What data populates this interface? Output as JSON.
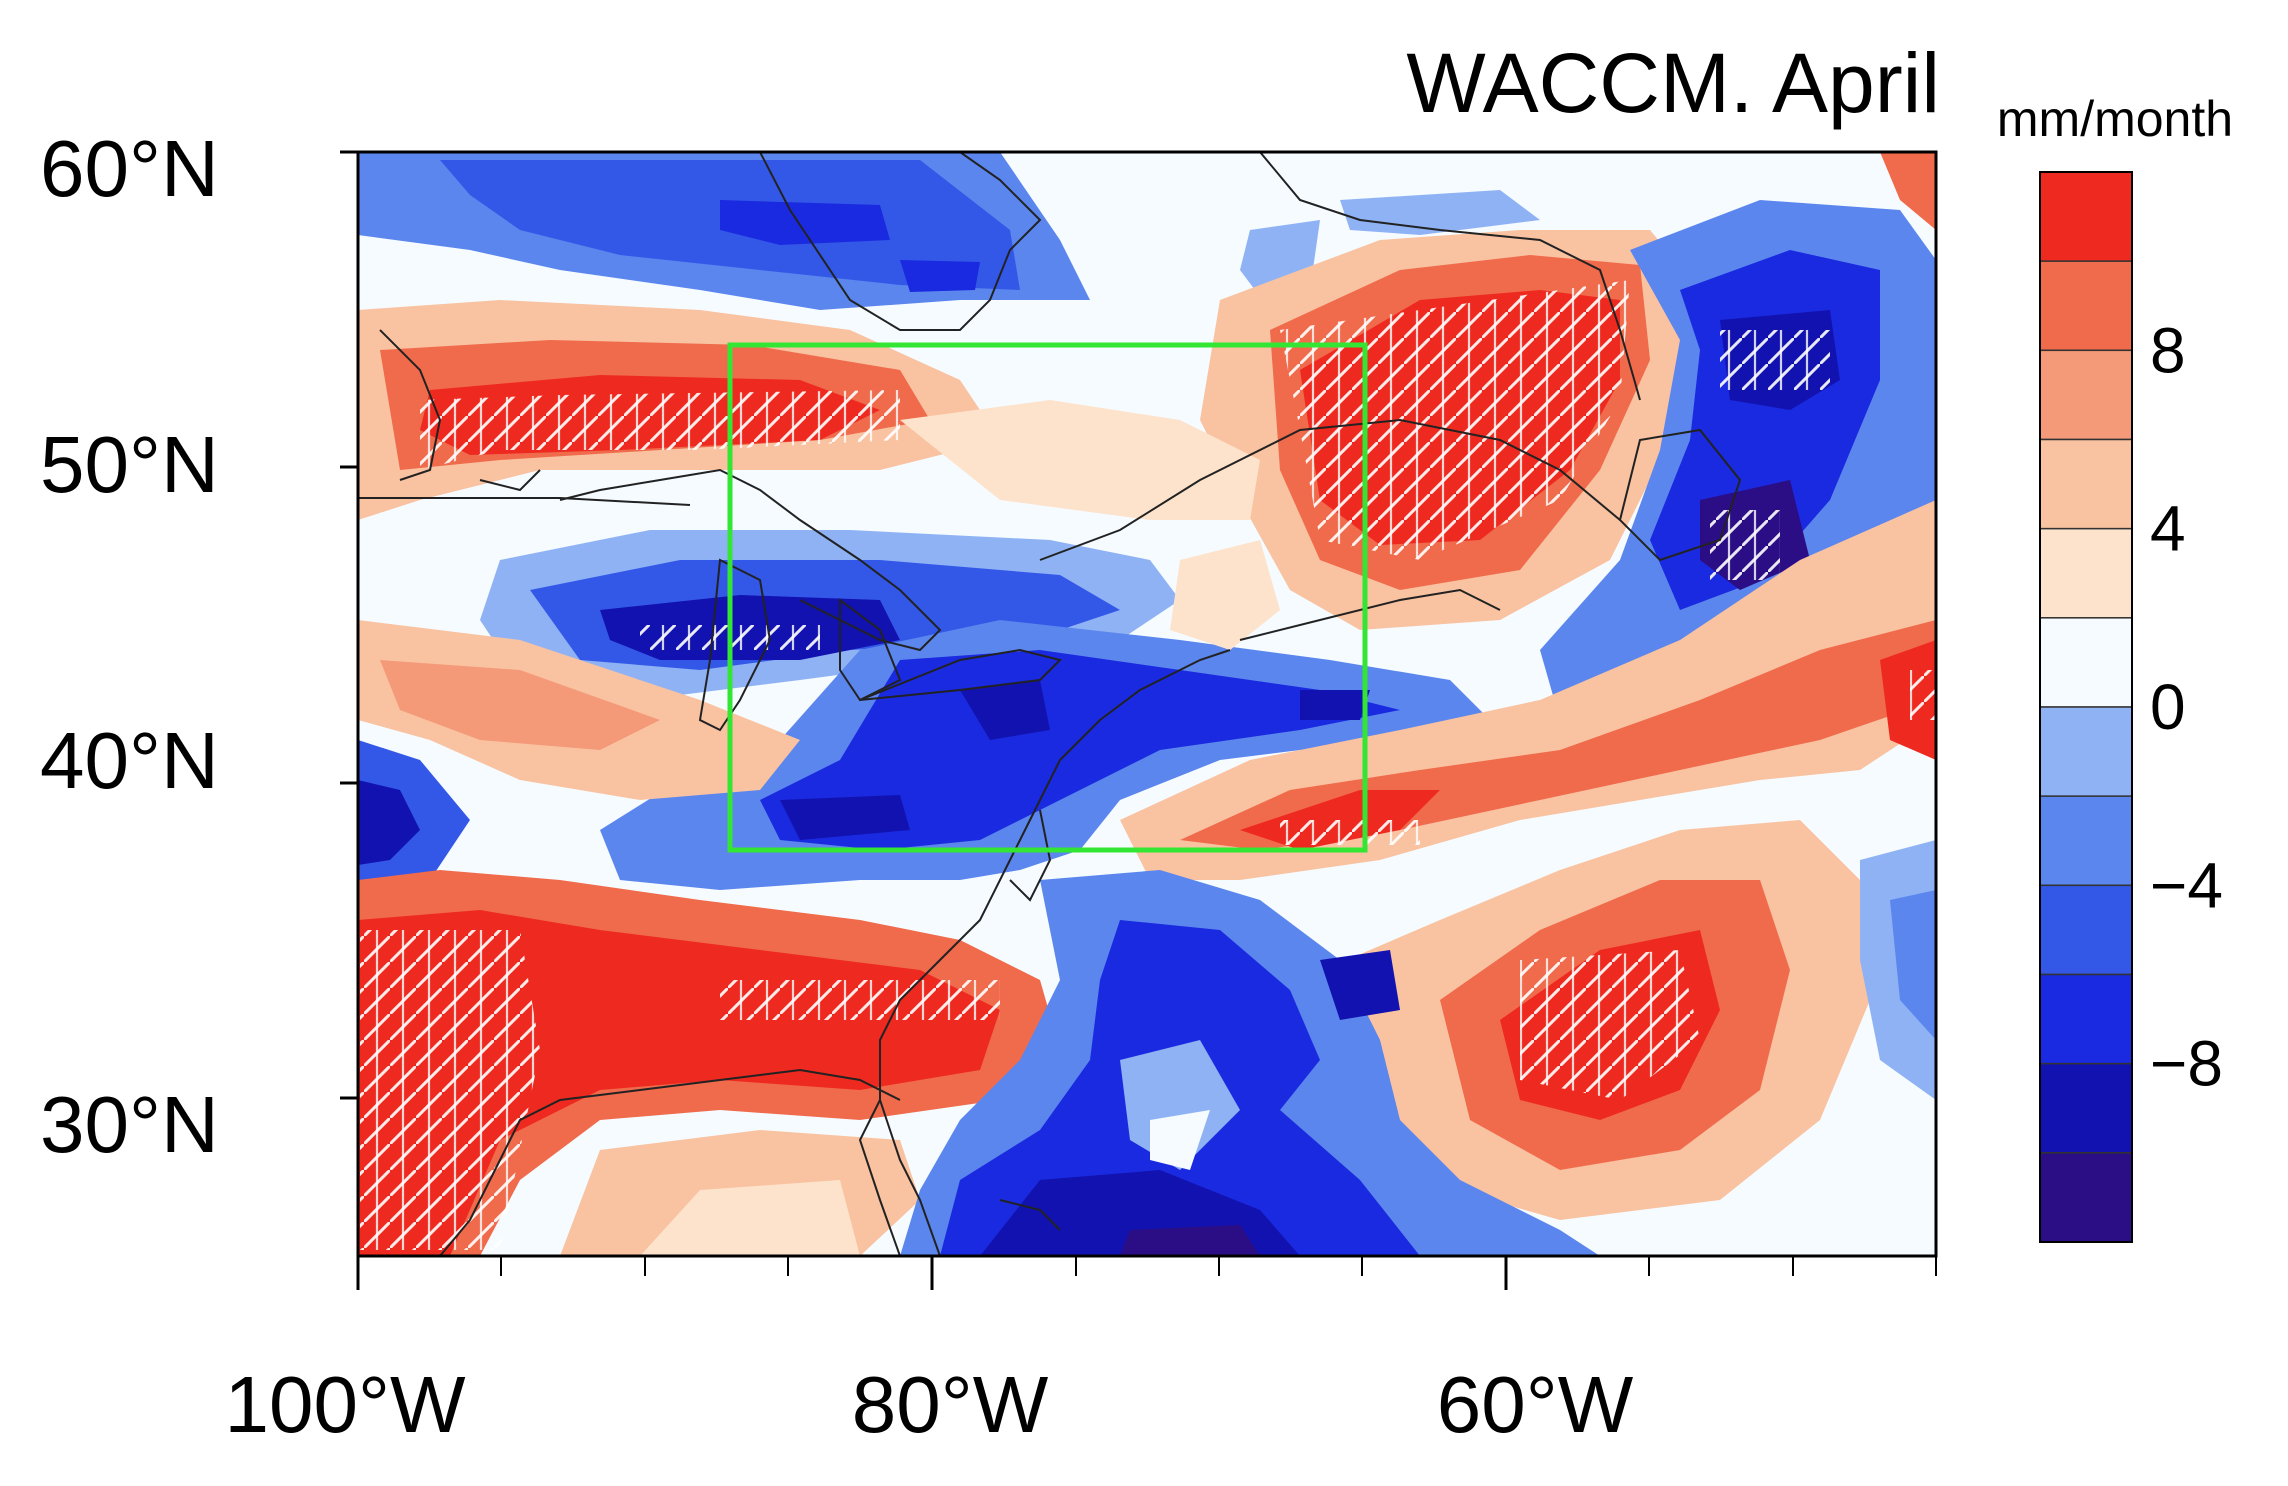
{
  "title": "WACCM. April",
  "units": "mm/month",
  "map": {
    "lon_range": [
      -100,
      -45
    ],
    "lat_range": [
      25,
      60
    ],
    "lat_ticks": [
      {
        "value": 60,
        "label": "60°N"
      },
      {
        "value": 50,
        "label": "50°N"
      },
      {
        "value": 40,
        "label": "40°N"
      },
      {
        "value": 30,
        "label": "30°N"
      }
    ],
    "lon_ticks": [
      {
        "value": -100,
        "label": "100°W"
      },
      {
        "value": -80,
        "label": "80°W"
      },
      {
        "value": -60,
        "label": "60°W"
      }
    ],
    "lon_minor_ticks": [
      -95,
      -90,
      -85,
      -75,
      -70,
      -65,
      -55,
      -50,
      -45
    ],
    "box_region": {
      "lon": [
        -87,
        -65
      ],
      "lat": [
        38,
        54
      ],
      "color": "#33e633"
    },
    "colors": {
      "neg_dark": "#2b0d85",
      "neg_5": "#1212b0",
      "neg_4": "#1a2ae0",
      "neg_3": "#3358e8",
      "neg_2": "#5b86ee",
      "neg_1": "#8fb2f5",
      "zero": "#f5fbff",
      "pos_1": "#fde3cc",
      "pos_2": "#f9c2a0",
      "pos_3": "#f49a78",
      "pos_4": "#f06a4c",
      "pos_5": "#ee2a20"
    }
  },
  "colorbar": {
    "colors": [
      "#ee2a20",
      "#f06a4c",
      "#f49a78",
      "#f9c2a0",
      "#fde3cc",
      "#f5fbff",
      "#8fb2f5",
      "#5b86ee",
      "#3358e8",
      "#1a2ae0",
      "#1212b0",
      "#2b0d85"
    ],
    "labels": [
      {
        "after_index": 1,
        "text": "8"
      },
      {
        "after_index": 3,
        "text": "4"
      },
      {
        "after_index": 5,
        "text": "0"
      },
      {
        "after_index": 7,
        "text": "−4"
      },
      {
        "after_index": 9,
        "text": "−8"
      }
    ]
  }
}
